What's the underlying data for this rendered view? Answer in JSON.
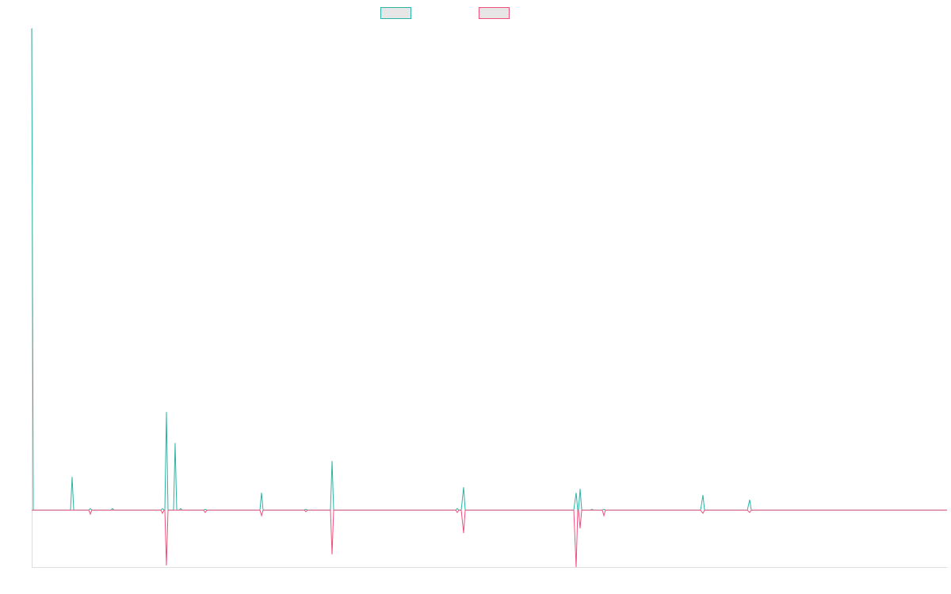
{
  "chart_data": {
    "type": "line",
    "title": "",
    "xlabel": "",
    "ylabel": "",
    "grid": false,
    "legend_position": "top-center",
    "xlim": [
      0,
      1155
    ],
    "ylim": [
      -72,
      609
    ],
    "series": [
      {
        "color": "#2bb3a6",
        "points": [
          [
            0,
            609
          ],
          [
            2,
            0
          ],
          [
            49,
            0
          ],
          [
            51,
            42
          ],
          [
            53,
            0
          ],
          [
            72,
            0
          ],
          [
            74,
            2
          ],
          [
            76,
            0
          ],
          [
            100,
            0
          ],
          [
            102,
            2
          ],
          [
            104,
            0
          ],
          [
            163,
            0
          ],
          [
            165,
            2
          ],
          [
            167,
            0
          ],
          [
            168,
            0
          ],
          [
            170,
            124
          ],
          [
            172,
            0
          ],
          [
            179,
            0
          ],
          [
            181,
            85
          ],
          [
            183,
            0
          ],
          [
            186,
            0
          ],
          [
            188,
            2
          ],
          [
            190,
            0
          ],
          [
            217,
            0
          ],
          [
            219,
            1
          ],
          [
            221,
            0
          ],
          [
            288,
            0
          ],
          [
            290,
            22
          ],
          [
            292,
            0
          ],
          [
            344,
            0
          ],
          [
            346,
            1
          ],
          [
            348,
            0
          ],
          [
            377,
            0
          ],
          [
            379,
            62
          ],
          [
            381,
            0
          ],
          [
            535,
            0
          ],
          [
            537,
            2
          ],
          [
            539,
            0
          ],
          [
            542,
            0
          ],
          [
            545,
            29
          ],
          [
            547,
            0
          ],
          [
            684,
            0
          ],
          [
            687,
            22
          ],
          [
            689,
            0
          ],
          [
            690,
            0
          ],
          [
            692,
            27
          ],
          [
            694,
            0
          ],
          [
            705,
            0
          ],
          [
            707,
            1
          ],
          [
            709,
            0
          ],
          [
            720,
            0
          ],
          [
            722,
            1
          ],
          [
            724,
            0
          ],
          [
            844,
            0
          ],
          [
            847,
            19
          ],
          [
            849,
            0
          ],
          [
            903,
            0
          ],
          [
            906,
            13
          ],
          [
            908,
            0
          ],
          [
            1155,
            0
          ]
        ]
      },
      {
        "color": "#ef4f7d",
        "points": [
          [
            0,
            0
          ],
          [
            72,
            0
          ],
          [
            74,
            -5
          ],
          [
            76,
            0
          ],
          [
            163,
            0
          ],
          [
            165,
            -4
          ],
          [
            167,
            0
          ],
          [
            168,
            0
          ],
          [
            170,
            -70
          ],
          [
            172,
            0
          ],
          [
            217,
            0
          ],
          [
            219,
            -3
          ],
          [
            221,
            0
          ],
          [
            288,
            0
          ],
          [
            290,
            -7
          ],
          [
            292,
            0
          ],
          [
            344,
            0
          ],
          [
            346,
            -2
          ],
          [
            348,
            0
          ],
          [
            377,
            0
          ],
          [
            379,
            -56
          ],
          [
            381,
            0
          ],
          [
            535,
            0
          ],
          [
            537,
            -3
          ],
          [
            539,
            0
          ],
          [
            542,
            0
          ],
          [
            545,
            -29
          ],
          [
            547,
            0
          ],
          [
            684,
            0
          ],
          [
            687,
            -72
          ],
          [
            689,
            0
          ],
          [
            690,
            0
          ],
          [
            692,
            -23
          ],
          [
            694,
            0
          ],
          [
            720,
            0
          ],
          [
            722,
            -7
          ],
          [
            724,
            0
          ],
          [
            844,
            0
          ],
          [
            847,
            -4
          ],
          [
            849,
            0
          ],
          [
            903,
            0
          ],
          [
            906,
            -3
          ],
          [
            908,
            0
          ],
          [
            1155,
            0
          ]
        ]
      }
    ]
  }
}
